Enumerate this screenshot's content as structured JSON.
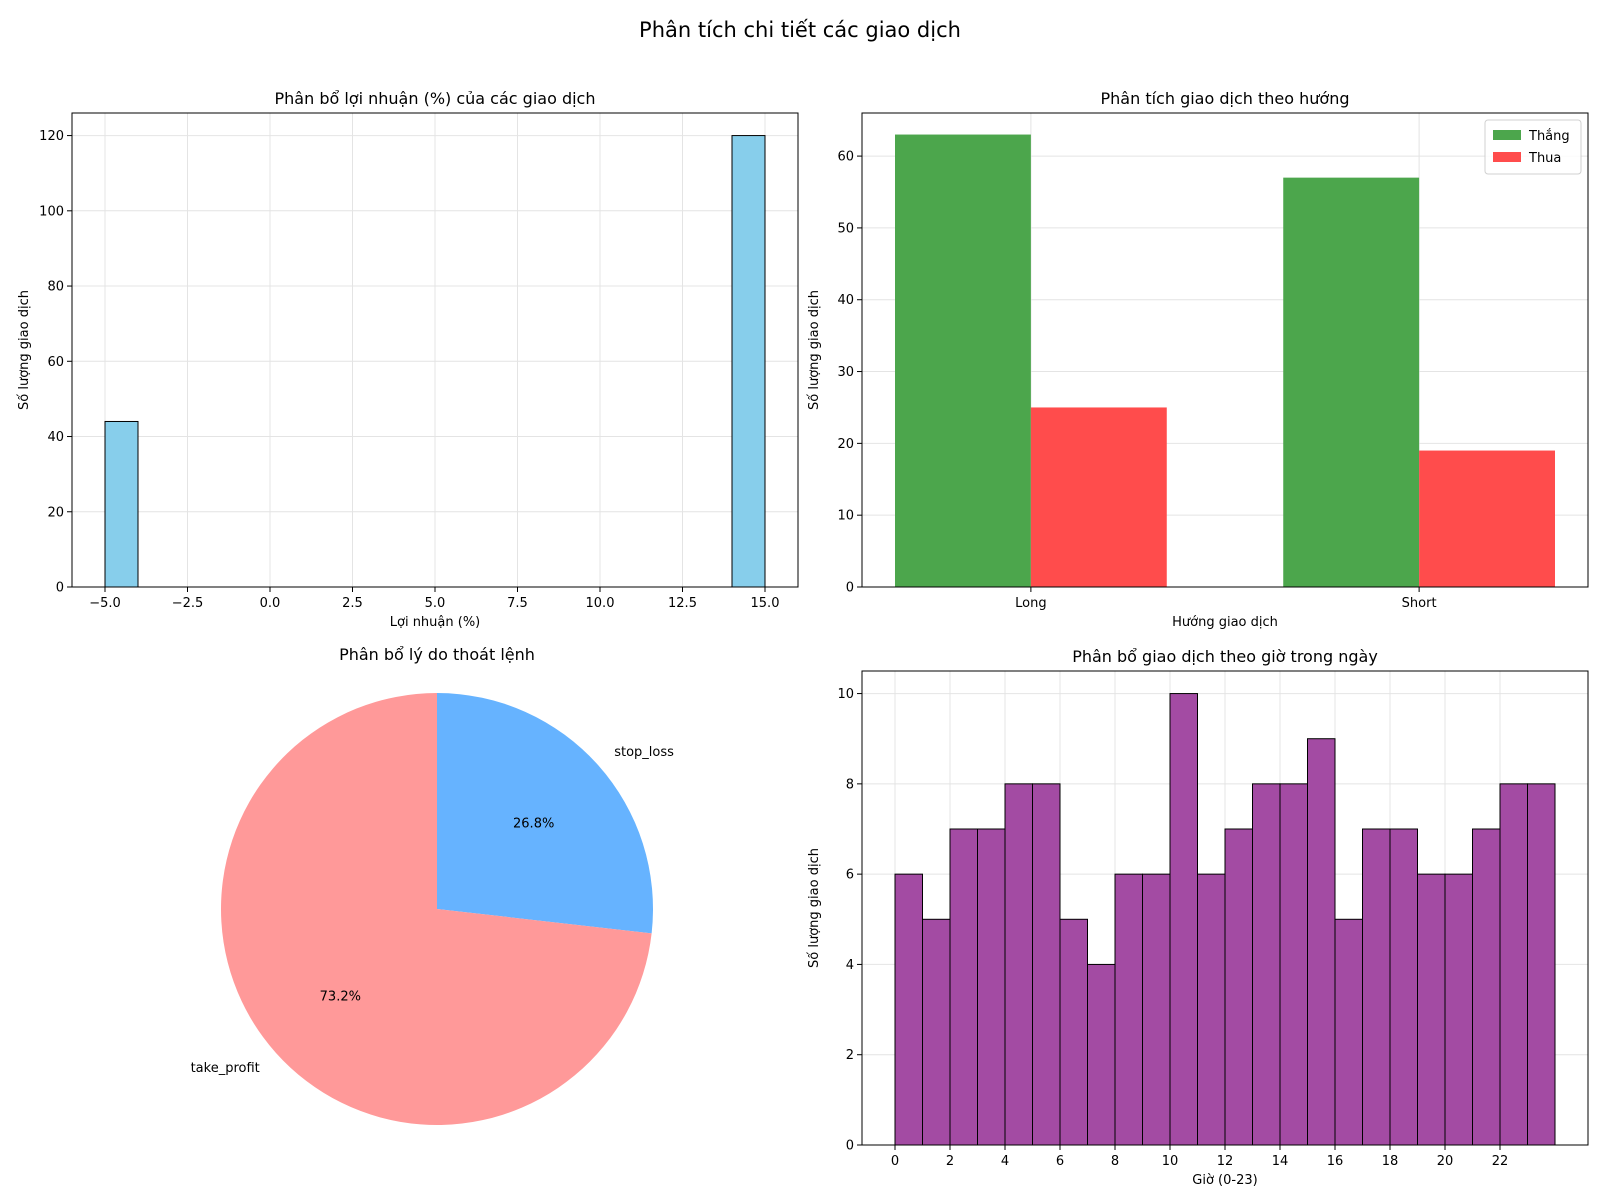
{
  "figure_title": "Phân tích chi tiết các giao dịch",
  "chart_data": [
    {
      "type": "bar",
      "subtype": "histogram",
      "title": "Phân bổ lợi nhuận (%) của các giao dịch",
      "xlabel": "Lợi nhuận (%)",
      "ylabel": "Số lượng giao dịch",
      "xlim": [
        -6,
        16
      ],
      "ylim": [
        0,
        126
      ],
      "xticks": [
        "−5.0",
        "−2.5",
        "0.0",
        "2.5",
        "5.0",
        "7.5",
        "10.0",
        "12.5",
        "15.0"
      ],
      "xtick_values": [
        -5,
        -2.5,
        0,
        2.5,
        5,
        7.5,
        10,
        12.5,
        15
      ],
      "yticks": [
        0,
        20,
        40,
        60,
        80,
        100,
        120
      ],
      "bins": [
        {
          "x0": -5.0,
          "x1": -4.0,
          "count": 44
        },
        {
          "x0": 14.0,
          "x1": 15.0,
          "count": 120
        }
      ],
      "color": "#87ceeb",
      "grid": true
    },
    {
      "type": "bar",
      "subtype": "grouped",
      "title": "Phân tích giao dịch theo hướng",
      "xlabel": "Hướng giao dịch",
      "ylabel": "Số lượng giao dịch",
      "categories": [
        "Long",
        "Short"
      ],
      "ylim": [
        0,
        66
      ],
      "yticks": [
        0,
        10,
        20,
        30,
        40,
        50,
        60
      ],
      "series": [
        {
          "name": "Thắng",
          "values": [
            63,
            57
          ],
          "color": "#4ca64c"
        },
        {
          "name": "Thua",
          "values": [
            25,
            19
          ],
          "color": "#ff4c4c"
        }
      ],
      "legend": "top-right",
      "grid": true
    },
    {
      "type": "pie",
      "title": "Phân bổ lý do thoát lệnh",
      "slices": [
        {
          "label": "stop_loss",
          "value": 26.8,
          "pct_label": "26.8%",
          "color": "#66b3ff"
        },
        {
          "label": "take_profit",
          "value": 73.2,
          "pct_label": "73.2%",
          "color": "#ff9999"
        }
      ],
      "start_angle": 90
    },
    {
      "type": "bar",
      "subtype": "histogram",
      "title": "Phân bổ giao dịch theo giờ trong ngày",
      "xlabel": "Giờ (0-23)",
      "ylabel": "Số lượng giao dịch",
      "xlim": [
        -1.2,
        25.2
      ],
      "ylim": [
        0,
        10.5
      ],
      "xticks": [
        0,
        2,
        4,
        6,
        8,
        10,
        12,
        14,
        16,
        18,
        20,
        22
      ],
      "yticks": [
        0,
        2,
        4,
        6,
        8,
        10
      ],
      "counts": [
        6,
        5,
        7,
        7,
        8,
        8,
        5,
        4,
        6,
        6,
        10,
        6,
        7,
        8,
        8,
        9,
        5,
        7,
        7,
        6,
        6,
        7,
        8,
        8
      ],
      "color": "#a34ba3",
      "grid": true
    }
  ]
}
